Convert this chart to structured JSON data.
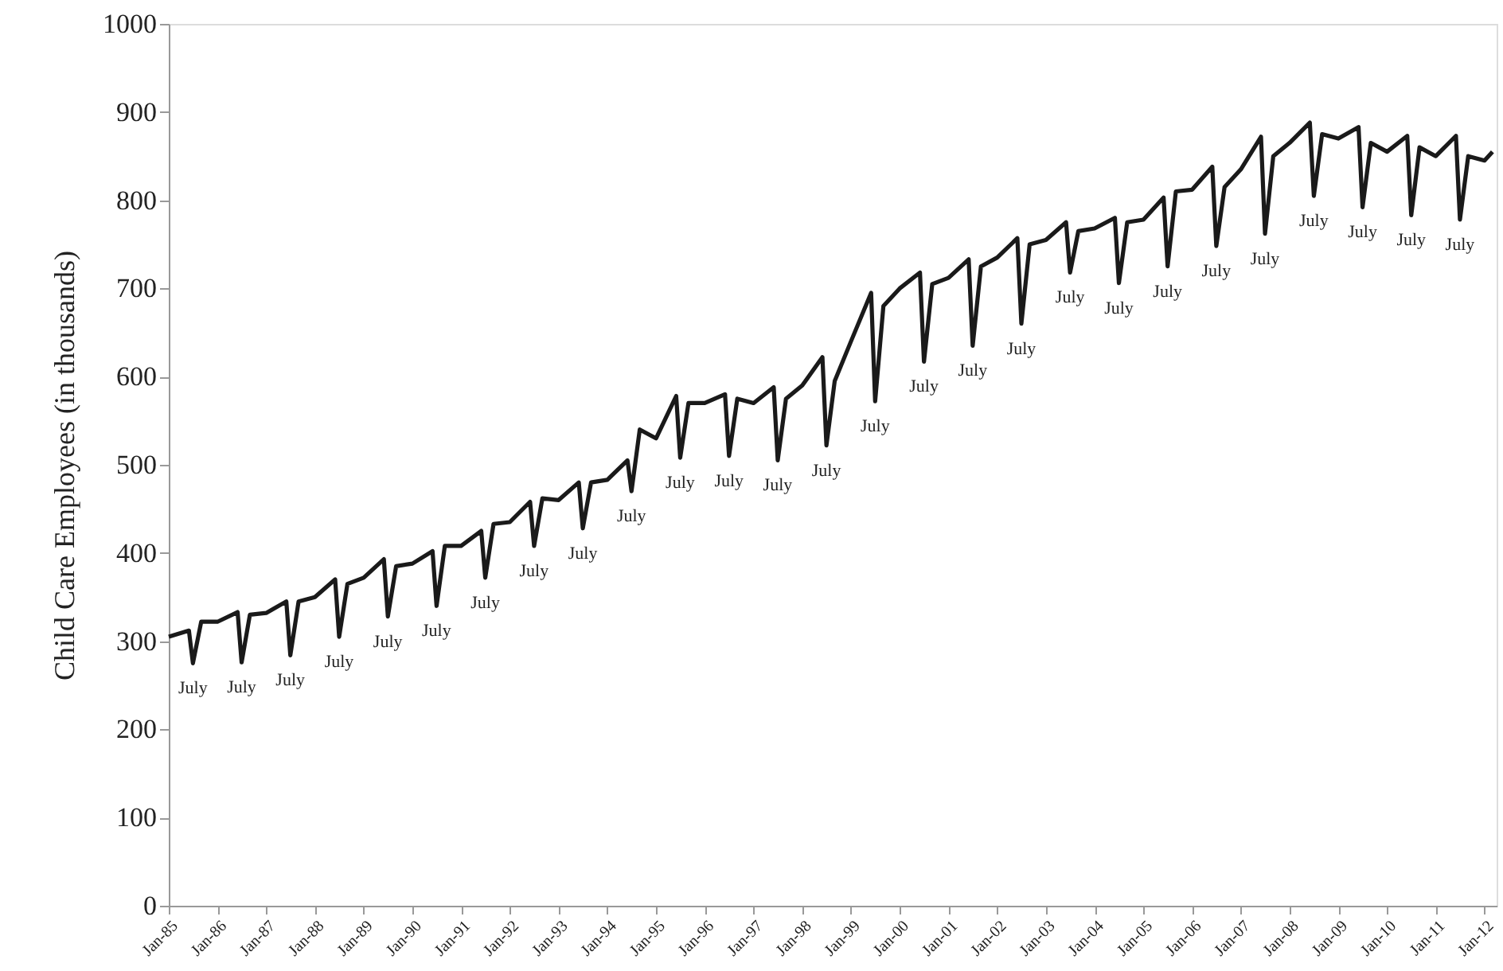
{
  "chart_data": {
    "type": "line",
    "ylabel": "Child Care Employees (in thousands)",
    "color": "#1a1a1a",
    "x": [
      "1985-01",
      "1985-06",
      "1985-07",
      "1985-09",
      "1986-01",
      "1986-06",
      "1986-07",
      "1986-09",
      "1987-01",
      "1987-06",
      "1987-07",
      "1987-09",
      "1988-01",
      "1988-06",
      "1988-07",
      "1988-09",
      "1989-01",
      "1989-06",
      "1989-07",
      "1989-09",
      "1990-01",
      "1990-06",
      "1990-07",
      "1990-09",
      "1991-01",
      "1991-06",
      "1991-07",
      "1991-09",
      "1992-01",
      "1992-06",
      "1992-07",
      "1992-09",
      "1993-01",
      "1993-06",
      "1993-07",
      "1993-09",
      "1994-01",
      "1994-06",
      "1994-07",
      "1994-09",
      "1995-01",
      "1995-06",
      "1995-07",
      "1995-09",
      "1996-01",
      "1996-06",
      "1996-07",
      "1996-09",
      "1997-01",
      "1997-06",
      "1997-07",
      "1997-09",
      "1998-01",
      "1998-06",
      "1998-07",
      "1998-09",
      "1999-01",
      "1999-06",
      "1999-07",
      "1999-09",
      "2000-01",
      "2000-06",
      "2000-07",
      "2000-09",
      "2001-01",
      "2001-06",
      "2001-07",
      "2001-09",
      "2002-01",
      "2002-06",
      "2002-07",
      "2002-09",
      "2003-01",
      "2003-06",
      "2003-07",
      "2003-09",
      "2004-01",
      "2004-06",
      "2004-07",
      "2004-09",
      "2005-01",
      "2005-06",
      "2005-07",
      "2005-09",
      "2006-01",
      "2006-06",
      "2006-07",
      "2006-09",
      "2007-01",
      "2007-06",
      "2007-07",
      "2007-09",
      "2008-01",
      "2008-06",
      "2008-07",
      "2008-09",
      "2009-01",
      "2009-06",
      "2009-07",
      "2009-09",
      "2010-01",
      "2010-06",
      "2010-07",
      "2010-09",
      "2011-01",
      "2011-06",
      "2011-07",
      "2011-09",
      "2012-01",
      "2012-03"
    ],
    "values": [
      305,
      312,
      275,
      322,
      322,
      333,
      276,
      330,
      332,
      345,
      284,
      345,
      350,
      370,
      305,
      365,
      372,
      393,
      328,
      385,
      388,
      402,
      340,
      408,
      408,
      425,
      372,
      433,
      435,
      458,
      408,
      462,
      460,
      480,
      428,
      480,
      483,
      505,
      470,
      540,
      530,
      578,
      508,
      570,
      570,
      580,
      510,
      575,
      570,
      588,
      505,
      575,
      590,
      622,
      522,
      595,
      640,
      695,
      572,
      680,
      700,
      718,
      617,
      705,
      712,
      733,
      635,
      725,
      735,
      757,
      660,
      750,
      755,
      775,
      718,
      765,
      768,
      780,
      706,
      775,
      778,
      803,
      725,
      810,
      812,
      838,
      748,
      815,
      835,
      872,
      762,
      850,
      865,
      888,
      805,
      875,
      870,
      883,
      792,
      865,
      855,
      873,
      783,
      860,
      850,
      873,
      778,
      850,
      845,
      855
    ],
    "xlim": [
      "1985-01",
      "2012-04"
    ],
    "xticks": [
      {
        "value": "1985-01",
        "label": "Jan-85"
      },
      {
        "value": "1986-01",
        "label": "Jan-86"
      },
      {
        "value": "1987-01",
        "label": "Jan-87"
      },
      {
        "value": "1988-01",
        "label": "Jan-88"
      },
      {
        "value": "1989-01",
        "label": "Jan-89"
      },
      {
        "value": "1990-01",
        "label": "Jan-90"
      },
      {
        "value": "1991-01",
        "label": "Jan-91"
      },
      {
        "value": "1992-01",
        "label": "Jan-92"
      },
      {
        "value": "1993-01",
        "label": "Jan-93"
      },
      {
        "value": "1994-01",
        "label": "Jan-94"
      },
      {
        "value": "1995-01",
        "label": "Jan-95"
      },
      {
        "value": "1996-01",
        "label": "Jan-96"
      },
      {
        "value": "1997-01",
        "label": "Jan-97"
      },
      {
        "value": "1998-01",
        "label": "Jan-98"
      },
      {
        "value": "1999-01",
        "label": "Jan-99"
      },
      {
        "value": "2000-01",
        "label": "Jan-00"
      },
      {
        "value": "2001-01",
        "label": "Jan-01"
      },
      {
        "value": "2002-01",
        "label": "Jan-02"
      },
      {
        "value": "2003-01",
        "label": "Jan-03"
      },
      {
        "value": "2004-01",
        "label": "Jan-04"
      },
      {
        "value": "2005-01",
        "label": "Jan-05"
      },
      {
        "value": "2006-01",
        "label": "Jan-06"
      },
      {
        "value": "2007-01",
        "label": "Jan-07"
      },
      {
        "value": "2008-01",
        "label": "Jan-08"
      },
      {
        "value": "2009-01",
        "label": "Jan-09"
      },
      {
        "value": "2010-01",
        "label": "Jan-10"
      },
      {
        "value": "2011-01",
        "label": "Jan-11"
      },
      {
        "value": "2012-01",
        "label": "Jan-12"
      }
    ],
    "ylim": [
      0,
      1000
    ],
    "yticks": [
      0,
      100,
      200,
      300,
      400,
      500,
      600,
      700,
      800,
      900,
      1000
    ],
    "grid": false,
    "annotations": [
      {
        "text": "July",
        "x": "1985-07",
        "y": 275
      },
      {
        "text": "July",
        "x": "1986-07",
        "y": 276
      },
      {
        "text": "July",
        "x": "1987-07",
        "y": 284
      },
      {
        "text": "July",
        "x": "1988-07",
        "y": 305
      },
      {
        "text": "July",
        "x": "1989-07",
        "y": 328
      },
      {
        "text": "July",
        "x": "1990-07",
        "y": 340
      },
      {
        "text": "July",
        "x": "1991-07",
        "y": 372
      },
      {
        "text": "July",
        "x": "1992-07",
        "y": 408
      },
      {
        "text": "July",
        "x": "1993-07",
        "y": 428
      },
      {
        "text": "July",
        "x": "1994-07",
        "y": 470
      },
      {
        "text": "July",
        "x": "1995-07",
        "y": 508
      },
      {
        "text": "July",
        "x": "1996-07",
        "y": 510
      },
      {
        "text": "July",
        "x": "1997-07",
        "y": 505
      },
      {
        "text": "July",
        "x": "1998-07",
        "y": 522
      },
      {
        "text": "July",
        "x": "1999-07",
        "y": 572
      },
      {
        "text": "July",
        "x": "2000-07",
        "y": 617
      },
      {
        "text": "July",
        "x": "2001-07",
        "y": 635
      },
      {
        "text": "July",
        "x": "2002-07",
        "y": 660
      },
      {
        "text": "July",
        "x": "2003-07",
        "y": 718
      },
      {
        "text": "July",
        "x": "2004-07",
        "y": 706
      },
      {
        "text": "July",
        "x": "2005-07",
        "y": 725
      },
      {
        "text": "July",
        "x": "2006-07",
        "y": 748
      },
      {
        "text": "July",
        "x": "2007-07",
        "y": 762
      },
      {
        "text": "July",
        "x": "2008-07",
        "y": 805
      },
      {
        "text": "July",
        "x": "2009-07",
        "y": 792
      },
      {
        "text": "July",
        "x": "2010-07",
        "y": 783
      },
      {
        "text": "July",
        "x": "2011-07",
        "y": 778
      }
    ]
  }
}
